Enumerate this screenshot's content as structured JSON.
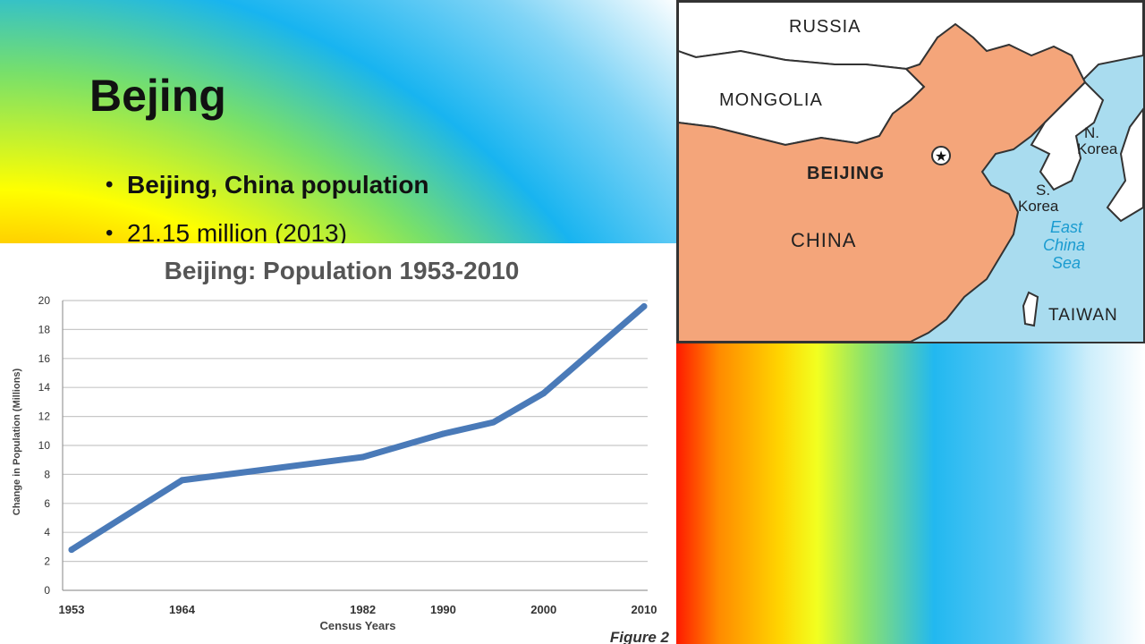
{
  "slide": {
    "title": "Bejing",
    "bullets": [
      {
        "text": "Beijing, China population",
        "bold": true
      },
      {
        "text": "21.15 million (2013)",
        "bold": false
      }
    ]
  },
  "map": {
    "labels": {
      "russia": "RUSSIA",
      "mongolia": "MONGOLIA",
      "beijing": "BEIJING",
      "china": "CHINA",
      "n_korea_1": "N.",
      "n_korea_2": "Korea",
      "s_korea_1": "S.",
      "s_korea_2": "Korea",
      "sea_1": "East",
      "sea_2": "China",
      "sea_3": "Sea",
      "taiwan": "TAIWAN"
    },
    "colors": {
      "china": "#f4a57a",
      "land": "#ffffff",
      "water": "#a9dcef",
      "sea_label": "#1a9bd0"
    }
  },
  "chart_data": {
    "type": "line",
    "title": "Beijing: Population 1953-2010",
    "xlabel": "Census Years",
    "ylabel": "Change in Population (Millions)",
    "caption": "Figure 2",
    "x": [
      1953,
      1964,
      1982,
      1990,
      2000,
      2010
    ],
    "x_tick_labels": [
      "1953",
      "1964",
      "1982",
      "1990",
      "2000",
      "2010"
    ],
    "series": [
      {
        "values": [
          2.8,
          7.6,
          9.2,
          10.8,
          13.6,
          19.6
        ],
        "color": "#4a7ab8"
      }
    ],
    "extra_points": [
      {
        "x": 1995,
        "y": 11.6
      }
    ],
    "y_ticks": [
      0,
      2,
      4,
      6,
      8,
      10,
      12,
      14,
      16,
      18,
      20
    ],
    "ylim": [
      0,
      20
    ],
    "grid": true,
    "legend": "none"
  }
}
